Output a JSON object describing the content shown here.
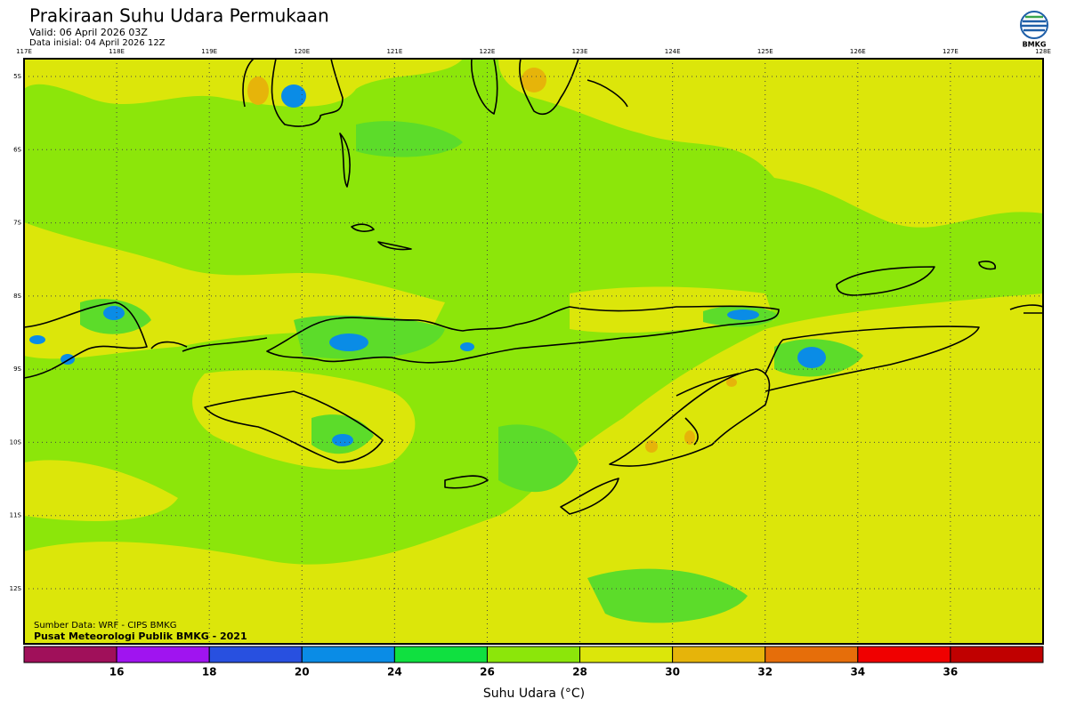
{
  "header": {
    "title": "Prakiraan Suhu Udara Permukaan",
    "valid": "Valid: 06 April 2026 03Z",
    "init": "Data inisial: 04 April 2026 12Z"
  },
  "logo": "BMKG",
  "map": {
    "lon_labels": [
      "117E",
      "118E",
      "119E",
      "120E",
      "121E",
      "122E",
      "123E",
      "124E",
      "125E",
      "126E",
      "127E",
      "128E"
    ],
    "lat_labels": [
      "5S",
      "6S",
      "7S",
      "8S",
      "9S",
      "10S",
      "11S",
      "12S"
    ],
    "source": "Sumber Data: WRF - CIPS BMKG",
    "credit": "Pusat Meteorologi Publik BMKG - 2021"
  },
  "colorbar": {
    "colors": [
      "#a0105a",
      "#a014f0",
      "#2850e0",
      "#0a8ce6",
      "#10e040",
      "#8ce60a",
      "#dce60a",
      "#e6b40a",
      "#e66e0a",
      "#f00000",
      "#c00000"
    ],
    "ticks": [
      16,
      18,
      20,
      24,
      26,
      28,
      30,
      32,
      34,
      36
    ],
    "title": "Suhu Udara (°C)"
  }
}
